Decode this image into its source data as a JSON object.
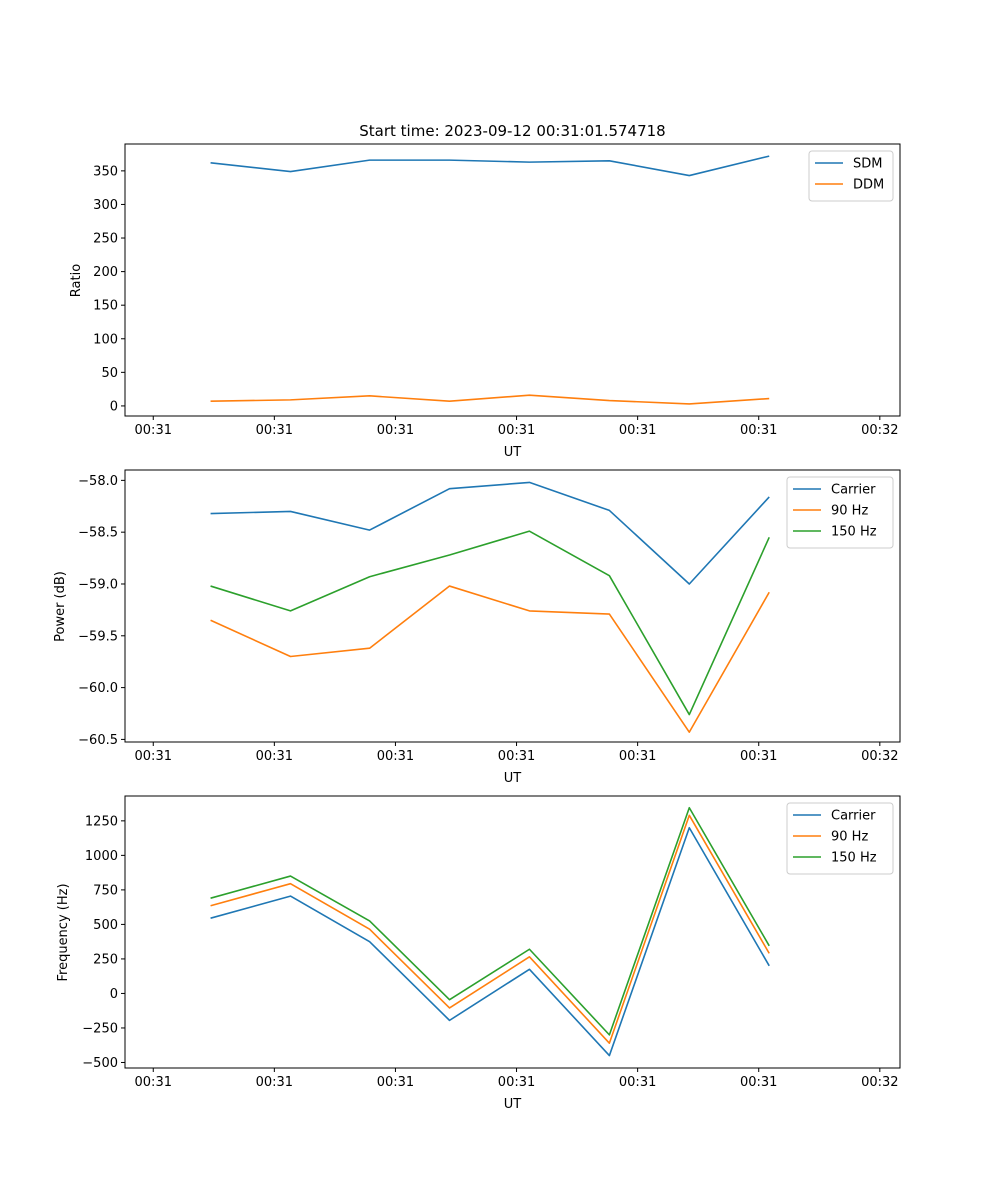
{
  "colors": {
    "blue": "#1f77b4",
    "orange": "#ff7f0e",
    "green": "#2ca02c"
  },
  "chart_data": [
    {
      "type": "line",
      "title": "Start time: 2023-09-12 00:31:01.574718",
      "xlabel": "UT",
      "ylabel": "Ratio",
      "xlim": [
        -0.6,
        9.0
      ],
      "ylim": [
        -15,
        390
      ],
      "x_ticks": [
        -0.25,
        1.25,
        2.75,
        4.25,
        5.75,
        7.25,
        8.75
      ],
      "x_tick_labels": [
        "00:31",
        "00:31",
        "00:31",
        "00:31",
        "00:31",
        "00:31",
        "00:32"
      ],
      "y_ticks": [
        0,
        50,
        100,
        150,
        200,
        250,
        300,
        350
      ],
      "y_tick_labels": [
        "0",
        "50",
        "100",
        "150",
        "200",
        "250",
        "300",
        "350"
      ],
      "x": [
        0.46,
        1.45,
        2.43,
        3.42,
        4.41,
        5.4,
        6.39,
        7.38
      ],
      "legend_position": "top-right",
      "series": [
        {
          "name": "SDM",
          "color": "#1f77b4",
          "values": [
            362,
            349,
            366,
            366,
            363,
            365,
            343,
            372
          ]
        },
        {
          "name": "DDM",
          "color": "#ff7f0e",
          "values": [
            7,
            9,
            15,
            7,
            16,
            8,
            3,
            11
          ]
        }
      ]
    },
    {
      "type": "line",
      "title": "",
      "xlabel": "UT",
      "ylabel": "Power (dB)",
      "xlim": [
        -0.6,
        9.0
      ],
      "ylim": [
        -60.525,
        -57.9
      ],
      "x_ticks": [
        -0.25,
        1.25,
        2.75,
        4.25,
        5.75,
        7.25,
        8.75
      ],
      "x_tick_labels": [
        "00:31",
        "00:31",
        "00:31",
        "00:31",
        "00:31",
        "00:31",
        "00:32"
      ],
      "y_ticks": [
        -60.5,
        -60.0,
        -59.5,
        -59.0,
        -58.5,
        -58.0
      ],
      "y_tick_labels": [
        "−60.5",
        "−60.0",
        "−59.5",
        "−59.0",
        "−58.5",
        "−58.0"
      ],
      "x": [
        0.46,
        1.45,
        2.43,
        3.42,
        4.41,
        5.4,
        6.39,
        7.38
      ],
      "legend_position": "top-right",
      "series": [
        {
          "name": "Carrier",
          "color": "#1f77b4",
          "values": [
            -58.32,
            -58.3,
            -58.48,
            -58.08,
            -58.02,
            -58.29,
            -59.0,
            -58.16
          ]
        },
        {
          "name": "90 Hz",
          "color": "#ff7f0e",
          "values": [
            -59.35,
            -59.7,
            -59.62,
            -59.02,
            -59.26,
            -59.29,
            -60.43,
            -59.08
          ]
        },
        {
          "name": "150 Hz",
          "color": "#2ca02c",
          "values": [
            -59.02,
            -59.26,
            -58.93,
            -58.72,
            -58.49,
            -58.92,
            -60.26,
            -58.55
          ]
        }
      ]
    },
    {
      "type": "line",
      "title": "",
      "xlabel": "UT",
      "ylabel": "Frequency (Hz)",
      "xlim": [
        -0.6,
        9.0
      ],
      "ylim": [
        -540,
        1430
      ],
      "x_ticks": [
        -0.25,
        1.25,
        2.75,
        4.25,
        5.75,
        7.25,
        8.75
      ],
      "x_tick_labels": [
        "00:31",
        "00:31",
        "00:31",
        "00:31",
        "00:31",
        "00:31",
        "00:32"
      ],
      "y_ticks": [
        -500,
        -250,
        0,
        250,
        500,
        750,
        1000,
        1250
      ],
      "y_tick_labels": [
        "−500",
        "−250",
        "0",
        "250",
        "500",
        "750",
        "1000",
        "1250"
      ],
      "x": [
        0.46,
        1.45,
        2.43,
        3.42,
        4.41,
        5.4,
        6.39,
        7.38
      ],
      "legend_position": "top-right",
      "series": [
        {
          "name": "Carrier",
          "color": "#1f77b4",
          "values": [
            545,
            705,
            375,
            -195,
            175,
            -450,
            1200,
            200
          ]
        },
        {
          "name": "90 Hz",
          "color": "#ff7f0e",
          "values": [
            635,
            795,
            465,
            -105,
            265,
            -360,
            1290,
            290
          ]
        },
        {
          "name": "150 Hz",
          "color": "#2ca02c",
          "values": [
            690,
            850,
            525,
            -45,
            320,
            -300,
            1345,
            345
          ]
        }
      ]
    }
  ]
}
